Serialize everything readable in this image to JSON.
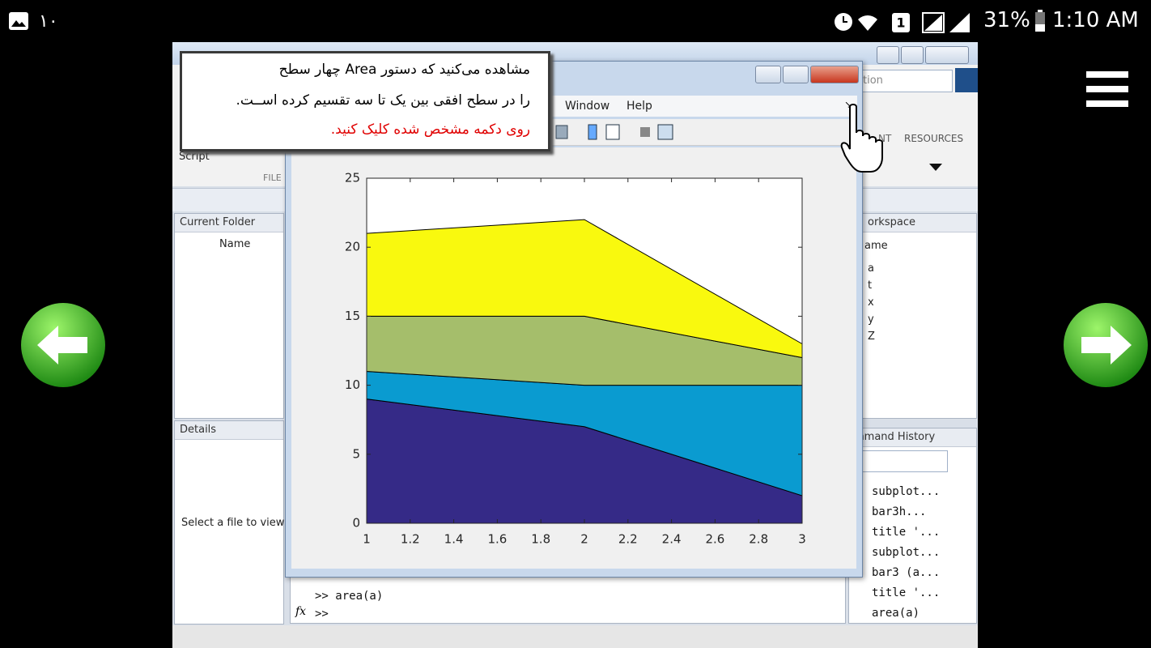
{
  "status_bar": {
    "notifications": "۱۰",
    "battery": "31%",
    "time": "1:10 AM"
  },
  "tooltip": {
    "lines": [
      "مشاهده می‌کنید که دستور Area چهار سطح",
      "را در سطح افقی بین یک تا سه تقسیم کرده اســت."
    ],
    "highlight": "روی دکمه مشخص شده کلیک کنید."
  },
  "matlab": {
    "menu": [
      "Window",
      "Help"
    ],
    "toolstrip": {
      "new": "Script",
      "section": "FILE",
      "environment": "NT",
      "resources": "RESOURCES",
      "search": "tion"
    },
    "current_folder": {
      "title": "Current Folder",
      "column": "Name",
      "details": "Details",
      "details_message": "Select a file to view"
    },
    "workspace": {
      "title": "orkspace",
      "column": "ame",
      "variables": [
        "a",
        "t",
        "x",
        "y",
        "Z"
      ]
    },
    "command_history": {
      "title": "mmand History",
      "items": [
        "subplot...",
        "bar3h...",
        "title '...",
        "subplot...",
        "bar3 (a...",
        "title '...",
        "area(a)"
      ]
    },
    "command_window": {
      "lines": [
        ">> area(a)",
        ">>"
      ],
      "fx": "fx"
    }
  },
  "chart_data": {
    "type": "area",
    "x": [
      1,
      2,
      3
    ],
    "series": [
      {
        "color": "#352a87",
        "values": [
          9,
          7,
          2
        ]
      },
      {
        "color": "#0a9bd0",
        "values": [
          2,
          3,
          8
        ]
      },
      {
        "color": "#a5be6b",
        "values": [
          4,
          5,
          2
        ]
      },
      {
        "color": "#f9f90e",
        "values": [
          6,
          7,
          1
        ]
      }
    ],
    "xlim": [
      1,
      3
    ],
    "xticks": [
      1,
      1.2,
      1.4,
      1.6,
      1.8,
      2,
      2.2,
      2.4,
      2.6,
      2.8,
      3
    ],
    "ylim": [
      0,
      25
    ],
    "yticks": [
      0,
      5,
      10,
      15,
      20,
      25
    ]
  }
}
